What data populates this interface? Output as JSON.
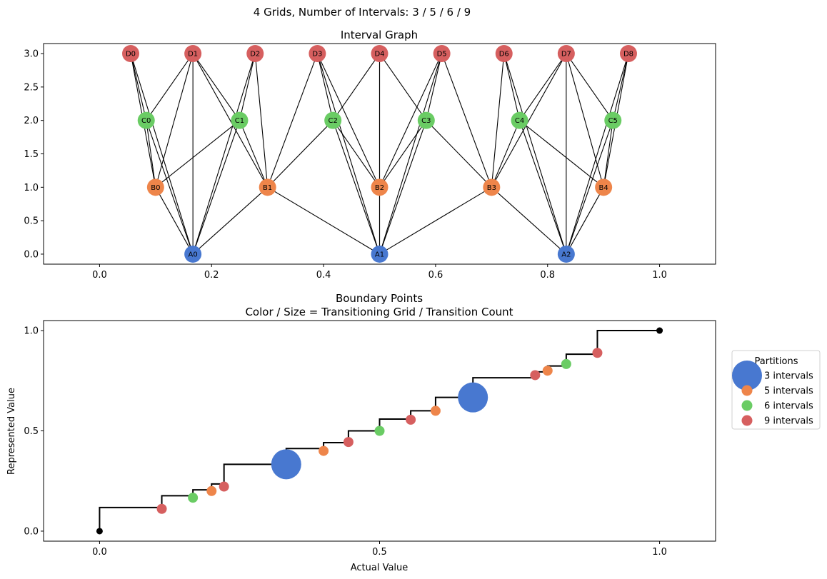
{
  "suptitle": "4 Grids, Number of Intervals: 3 / 5 / 6 / 9",
  "colors": {
    "A": "#4878d0",
    "B": "#ee854a",
    "C": "#6acc64",
    "D": "#d65f5f",
    "edge": "#000000",
    "step": "#000000",
    "endpoint": "#000000"
  },
  "chart_data": [
    {
      "type": "network",
      "title": "Interval Graph",
      "xlim": [
        -0.1,
        1.1
      ],
      "ylim": [
        -0.15,
        3.15
      ],
      "xticks": [
        "0.0",
        "0.2",
        "0.4",
        "0.6",
        "0.8",
        "1.0"
      ],
      "xtick_values": [
        0.0,
        0.2,
        0.4,
        0.6,
        0.8,
        1.0
      ],
      "yticks": [
        "0.0",
        "0.5",
        "1.0",
        "1.5",
        "2.0",
        "2.5",
        "3.0"
      ],
      "ytick_values": [
        0.0,
        0.5,
        1.0,
        1.5,
        2.0,
        2.5,
        3.0
      ],
      "nodes": [
        {
          "id": "A0",
          "x": 0.1667,
          "y": 0,
          "grid": "A"
        },
        {
          "id": "A1",
          "x": 0.5,
          "y": 0,
          "grid": "A"
        },
        {
          "id": "A2",
          "x": 0.8333,
          "y": 0,
          "grid": "A"
        },
        {
          "id": "B0",
          "x": 0.1,
          "y": 1,
          "grid": "B"
        },
        {
          "id": "B1",
          "x": 0.3,
          "y": 1,
          "grid": "B"
        },
        {
          "id": "B2",
          "x": 0.5,
          "y": 1,
          "grid": "B"
        },
        {
          "id": "B3",
          "x": 0.7,
          "y": 1,
          "grid": "B"
        },
        {
          "id": "B4",
          "x": 0.9,
          "y": 1,
          "grid": "B"
        },
        {
          "id": "C0",
          "x": 0.0833,
          "y": 2,
          "grid": "C"
        },
        {
          "id": "C1",
          "x": 0.25,
          "y": 2,
          "grid": "C"
        },
        {
          "id": "C2",
          "x": 0.4167,
          "y": 2,
          "grid": "C"
        },
        {
          "id": "C3",
          "x": 0.5833,
          "y": 2,
          "grid": "C"
        },
        {
          "id": "C4",
          "x": 0.75,
          "y": 2,
          "grid": "C"
        },
        {
          "id": "C5",
          "x": 0.9167,
          "y": 2,
          "grid": "C"
        },
        {
          "id": "D0",
          "x": 0.0556,
          "y": 3,
          "grid": "D"
        },
        {
          "id": "D1",
          "x": 0.1667,
          "y": 3,
          "grid": "D"
        },
        {
          "id": "D2",
          "x": 0.2778,
          "y": 3,
          "grid": "D"
        },
        {
          "id": "D3",
          "x": 0.3889,
          "y": 3,
          "grid": "D"
        },
        {
          "id": "D4",
          "x": 0.5,
          "y": 3,
          "grid": "D"
        },
        {
          "id": "D5",
          "x": 0.6111,
          "y": 3,
          "grid": "D"
        },
        {
          "id": "D6",
          "x": 0.7222,
          "y": 3,
          "grid": "D"
        },
        {
          "id": "D7",
          "x": 0.8333,
          "y": 3,
          "grid": "D"
        },
        {
          "id": "D8",
          "x": 0.9444,
          "y": 3,
          "grid": "D"
        }
      ],
      "edges": [
        [
          "A0",
          "B0"
        ],
        [
          "A0",
          "B1"
        ],
        [
          "A0",
          "C0"
        ],
        [
          "A0",
          "C1"
        ],
        [
          "A0",
          "D0"
        ],
        [
          "A0",
          "D1"
        ],
        [
          "A0",
          "D2"
        ],
        [
          "A1",
          "B1"
        ],
        [
          "A1",
          "B2"
        ],
        [
          "A1",
          "B3"
        ],
        [
          "A1",
          "C2"
        ],
        [
          "A1",
          "C3"
        ],
        [
          "A1",
          "D3"
        ],
        [
          "A1",
          "D4"
        ],
        [
          "A1",
          "D5"
        ],
        [
          "A2",
          "B3"
        ],
        [
          "A2",
          "B4"
        ],
        [
          "A2",
          "C4"
        ],
        [
          "A2",
          "C5"
        ],
        [
          "A2",
          "D6"
        ],
        [
          "A2",
          "D7"
        ],
        [
          "A2",
          "D8"
        ],
        [
          "B0",
          "C0"
        ],
        [
          "B0",
          "C1"
        ],
        [
          "B0",
          "D0"
        ],
        [
          "B0",
          "D1"
        ],
        [
          "B1",
          "C1"
        ],
        [
          "B1",
          "C2"
        ],
        [
          "B1",
          "D1"
        ],
        [
          "B1",
          "D2"
        ],
        [
          "B1",
          "D3"
        ],
        [
          "B2",
          "C2"
        ],
        [
          "B2",
          "C3"
        ],
        [
          "B2",
          "D3"
        ],
        [
          "B2",
          "D4"
        ],
        [
          "B2",
          "D5"
        ],
        [
          "B3",
          "C3"
        ],
        [
          "B3",
          "C4"
        ],
        [
          "B3",
          "D5"
        ],
        [
          "B3",
          "D6"
        ],
        [
          "B3",
          "D7"
        ],
        [
          "B4",
          "C4"
        ],
        [
          "B4",
          "C5"
        ],
        [
          "B4",
          "D7"
        ],
        [
          "B4",
          "D8"
        ],
        [
          "C0",
          "D0"
        ],
        [
          "C0",
          "D1"
        ],
        [
          "C1",
          "D1"
        ],
        [
          "C1",
          "D2"
        ],
        [
          "C2",
          "D3"
        ],
        [
          "C2",
          "D4"
        ],
        [
          "C3",
          "D4"
        ],
        [
          "C3",
          "D5"
        ],
        [
          "C4",
          "D6"
        ],
        [
          "C4",
          "D7"
        ],
        [
          "C5",
          "D7"
        ],
        [
          "C5",
          "D8"
        ]
      ]
    },
    {
      "type": "scatter",
      "title": "Boundary Points",
      "subtitle": "Color / Size = Transitioning Grid / Transition Count",
      "xlabel": "Actual Value",
      "ylabel": "Represented Value",
      "xlim": [
        -0.1,
        1.1
      ],
      "ylim": [
        -0.05,
        1.05
      ],
      "xticks": [
        "0.0",
        "0.5",
        "1.0"
      ],
      "xtick_values": [
        0.0,
        0.5,
        1.0
      ],
      "yticks": [
        "0.0",
        "0.5",
        "1.0"
      ],
      "ytick_values": [
        0.0,
        0.5,
        1.0
      ],
      "legend": {
        "title": "Partitions",
        "placement": "outside-right",
        "entries": [
          {
            "label": "3 intervals",
            "grid": "A",
            "size": 3
          },
          {
            "label": "5 intervals",
            "grid": "B",
            "size": 1
          },
          {
            "label": "6 intervals",
            "grid": "C",
            "size": 1
          },
          {
            "label": "9 intervals",
            "grid": "D",
            "size": 1
          }
        ]
      },
      "step_x": [
        0,
        0.1111,
        0.1667,
        0.2,
        0.2222,
        0.3333,
        0.4,
        0.4444,
        0.5,
        0.5556,
        0.6,
        0.6667,
        0.7778,
        0.8,
        0.8333,
        0.8889,
        1.0
      ],
      "step_y": [
        0,
        0.1176,
        0.1765,
        0.2059,
        0.2353,
        0.3333,
        0.4118,
        0.4412,
        0.5,
        0.5588,
        0.6,
        0.6667,
        0.7647,
        0.7941,
        0.8235,
        0.8824,
        1.0
      ],
      "points": [
        {
          "x": 0.1111,
          "y": 0.1111,
          "grid": "D",
          "count": 1
        },
        {
          "x": 0.1667,
          "y": 0.1667,
          "grid": "C",
          "count": 1
        },
        {
          "x": 0.2,
          "y": 0.2,
          "grid": "B",
          "count": 1
        },
        {
          "x": 0.2222,
          "y": 0.2222,
          "grid": "D",
          "count": 1
        },
        {
          "x": 0.3333,
          "y": 0.3333,
          "grid": "A",
          "count": 4
        },
        {
          "x": 0.4,
          "y": 0.4,
          "grid": "B",
          "count": 1
        },
        {
          "x": 0.4444,
          "y": 0.4444,
          "grid": "D",
          "count": 1
        },
        {
          "x": 0.5,
          "y": 0.5,
          "grid": "C",
          "count": 1
        },
        {
          "x": 0.5556,
          "y": 0.5556,
          "grid": "D",
          "count": 1
        },
        {
          "x": 0.6,
          "y": 0.6,
          "grid": "B",
          "count": 1
        },
        {
          "x": 0.6667,
          "y": 0.6667,
          "grid": "A",
          "count": 4
        },
        {
          "x": 0.7778,
          "y": 0.7778,
          "grid": "D",
          "count": 1
        },
        {
          "x": 0.8,
          "y": 0.8,
          "grid": "B",
          "count": 1
        },
        {
          "x": 0.8333,
          "y": 0.8333,
          "grid": "C",
          "count": 1
        },
        {
          "x": 0.8889,
          "y": 0.8889,
          "grid": "D",
          "count": 1
        }
      ],
      "endpoints": [
        {
          "x": 0,
          "y": 0
        },
        {
          "x": 1,
          "y": 1
        }
      ]
    }
  ]
}
